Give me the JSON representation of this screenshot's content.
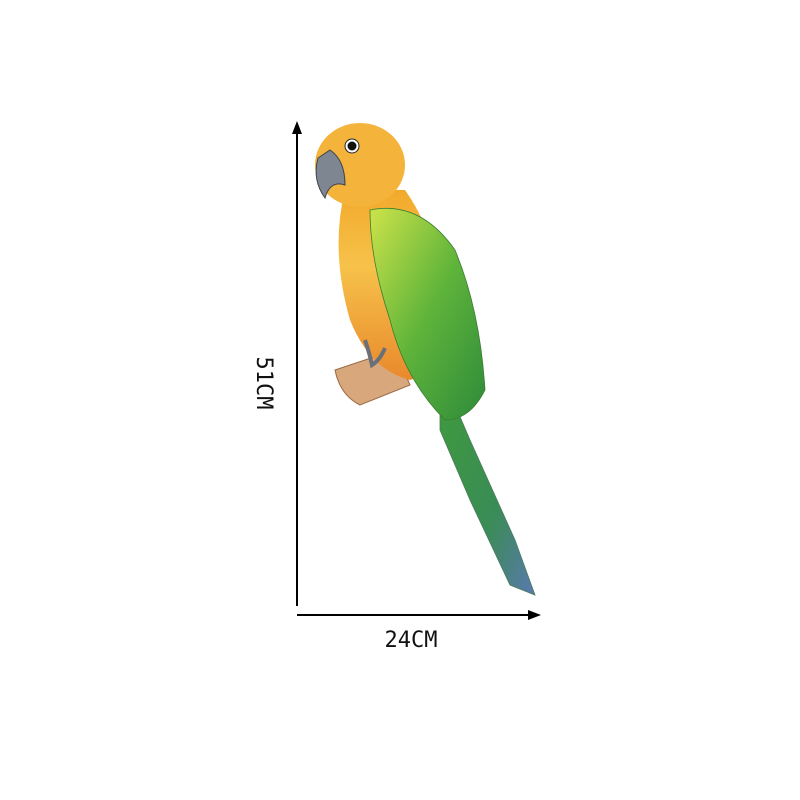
{
  "dimensions": {
    "height": "51CM",
    "width": "24CM"
  }
}
